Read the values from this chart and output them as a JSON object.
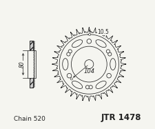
{
  "chain_text": "Chain 520",
  "part_text": "JTR 1478",
  "dim_104": "104",
  "dim_10_5": "10.5",
  "dim_80": "80",
  "num_teeth": 36,
  "tooth_outer_r": 0.62,
  "tooth_inner_r": 0.535,
  "inner_circle_r": 0.5,
  "hub_circle_r": 0.3,
  "center_hole_r": 0.075,
  "bolt_circle_r": 0.385,
  "slot_circle_r": 0.385,
  "bg_color": "#f5f5f0",
  "line_color": "#222222",
  "chain_fontsize": 6.5,
  "part_fontsize": 8.5
}
